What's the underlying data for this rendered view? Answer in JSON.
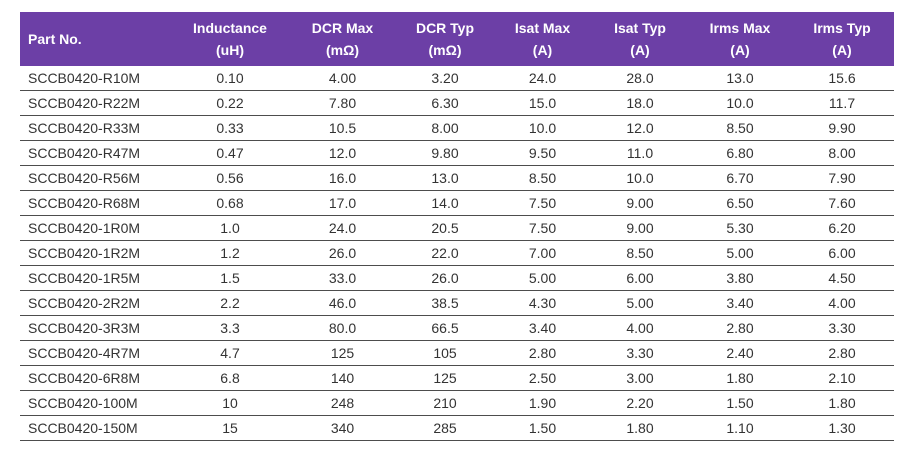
{
  "colors": {
    "header_bg": "#6C3FA6",
    "header_text": "#FFFFFF",
    "body_text": "#333333",
    "row_border": "#4D4D4D"
  },
  "table": {
    "columns": [
      {
        "label": "Part No.",
        "unit": ""
      },
      {
        "label": "Inductance",
        "unit": "(uH)"
      },
      {
        "label": "DCR Max",
        "unit": "(mΩ)"
      },
      {
        "label": "DCR Typ",
        "unit": "(mΩ)"
      },
      {
        "label": "Isat Max",
        "unit": "(A)"
      },
      {
        "label": "Isat Typ",
        "unit": "(A)"
      },
      {
        "label": "Irms Max",
        "unit": "(A)"
      },
      {
        "label": "Irms Typ",
        "unit": "(A)"
      }
    ],
    "rows": [
      [
        "SCCB0420-R10M",
        "0.10",
        "4.00",
        "3.20",
        "24.0",
        "28.0",
        "13.0",
        "15.6"
      ],
      [
        "SCCB0420-R22M",
        "0.22",
        "7.80",
        "6.30",
        "15.0",
        "18.0",
        "10.0",
        "11.7"
      ],
      [
        "SCCB0420-R33M",
        "0.33",
        "10.5",
        "8.00",
        "10.0",
        "12.0",
        "8.50",
        "9.90"
      ],
      [
        "SCCB0420-R47M",
        "0.47",
        "12.0",
        "9.80",
        "9.50",
        "11.0",
        "6.80",
        "8.00"
      ],
      [
        "SCCB0420-R56M",
        "0.56",
        "16.0",
        "13.0",
        "8.50",
        "10.0",
        "6.70",
        "7.90"
      ],
      [
        "SCCB0420-R68M",
        "0.68",
        "17.0",
        "14.0",
        "7.50",
        "9.00",
        "6.50",
        "7.60"
      ],
      [
        "SCCB0420-1R0M",
        "1.0",
        "24.0",
        "20.5",
        "7.50",
        "9.00",
        "5.30",
        "6.20"
      ],
      [
        "SCCB0420-1R2M",
        "1.2",
        "26.0",
        "22.0",
        "7.00",
        "8.50",
        "5.00",
        "6.00"
      ],
      [
        "SCCB0420-1R5M",
        "1.5",
        "33.0",
        "26.0",
        "5.00",
        "6.00",
        "3.80",
        "4.50"
      ],
      [
        "SCCB0420-2R2M",
        "2.2",
        "46.0",
        "38.5",
        "4.30",
        "5.00",
        "3.40",
        "4.00"
      ],
      [
        "SCCB0420-3R3M",
        "3.3",
        "80.0",
        "66.5",
        "3.40",
        "4.00",
        "2.80",
        "3.30"
      ],
      [
        "SCCB0420-4R7M",
        "4.7",
        "125",
        "105",
        "2.80",
        "3.30",
        "2.40",
        "2.80"
      ],
      [
        "SCCB0420-6R8M",
        "6.8",
        "140",
        "125",
        "2.50",
        "3.00",
        "1.80",
        "2.10"
      ],
      [
        "SCCB0420-100M",
        "10",
        "248",
        "210",
        "1.90",
        "2.20",
        "1.50",
        "1.80"
      ],
      [
        "SCCB0420-150M",
        "15",
        "340",
        "285",
        "1.50",
        "1.80",
        "1.10",
        "1.30"
      ]
    ]
  }
}
